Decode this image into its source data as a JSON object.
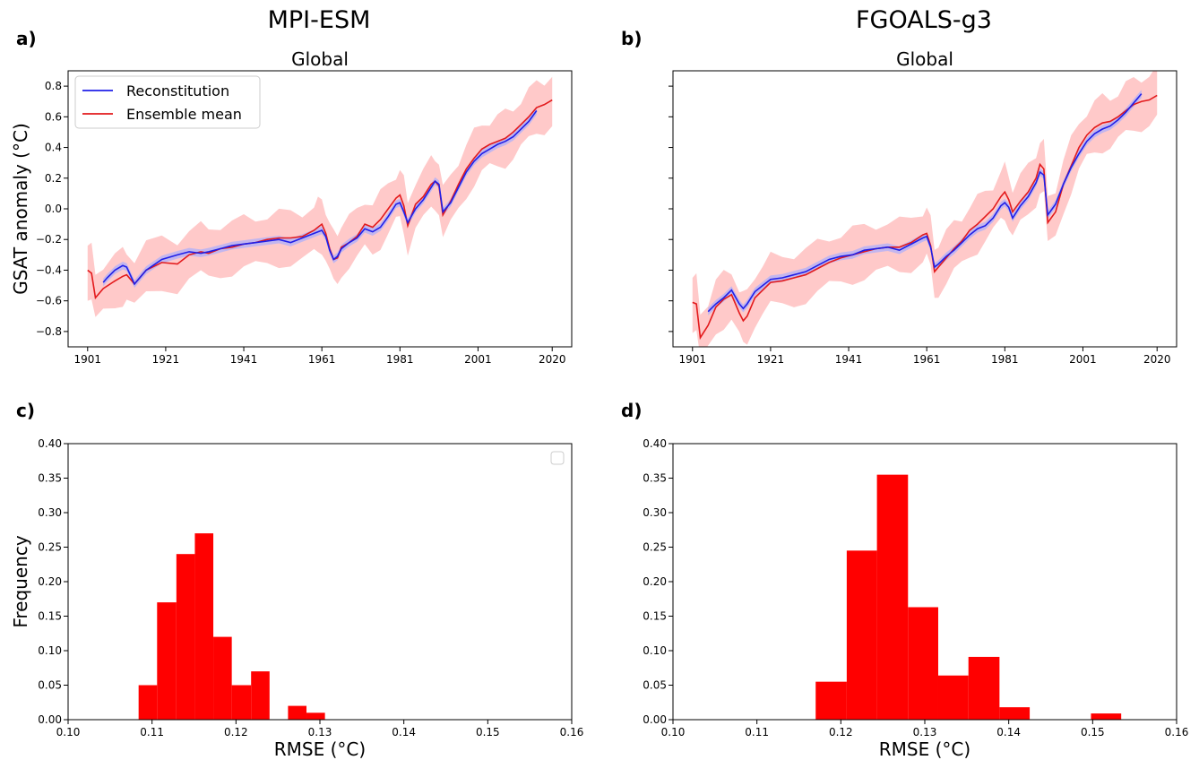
{
  "top_titles": [
    "MPI-ESM",
    "FGOALS-g3"
  ],
  "panel_labels": [
    "a)",
    "b)",
    "c)",
    "d)"
  ],
  "chart_data": [
    {
      "panel": "a)",
      "type": "line",
      "title": "Global",
      "xlabel": "",
      "ylabel": "GSAT anomaly (°C)",
      "xlim": [
        1896,
        2025
      ],
      "ylim": [
        -0.9,
        0.9
      ],
      "xticks": [
        1901,
        1921,
        1941,
        1961,
        1981,
        2001,
        2020
      ],
      "yticks": [
        -0.8,
        -0.6,
        -0.4,
        -0.2,
        0.0,
        0.2,
        0.4,
        0.6,
        0.8
      ],
      "ytick_labels": [
        "−0.8",
        "−0.6",
        "−0.4",
        "−0.2",
        "0.0",
        "0.2",
        "0.4",
        "0.6",
        "0.8"
      ],
      "legend": {
        "position": "top-left",
        "entries": [
          "Reconstitution",
          "Ensemble mean"
        ]
      },
      "colors": {
        "reconstitution": "#1f1fe8",
        "ensemble_mean": "#e31a1c",
        "spread": "#ffc9c9",
        "recon_band": "#b9b3f5"
      },
      "series": [
        {
          "name": "Ensemble mean",
          "x": [
            1901,
            1902,
            1903,
            1905,
            1908,
            1910,
            1911,
            1913,
            1916,
            1920,
            1924,
            1927,
            1930,
            1932,
            1935,
            1938,
            1941,
            1944,
            1947,
            1950,
            1953,
            1956,
            1959,
            1960,
            1961,
            1962,
            1963,
            1964,
            1965,
            1966,
            1968,
            1970,
            1972,
            1974,
            1976,
            1978,
            1980,
            1981,
            1982,
            1983,
            1985,
            1987,
            1989,
            1990,
            1991,
            1992,
            1994,
            1996,
            1998,
            2000,
            2002,
            2004,
            2006,
            2008,
            2010,
            2012,
            2014,
            2016,
            2018,
            2020
          ],
          "y": [
            -0.4,
            -0.42,
            -0.58,
            -0.52,
            -0.47,
            -0.44,
            -0.43,
            -0.49,
            -0.4,
            -0.35,
            -0.36,
            -0.3,
            -0.28,
            -0.29,
            -0.26,
            -0.25,
            -0.23,
            -0.22,
            -0.2,
            -0.19,
            -0.19,
            -0.18,
            -0.14,
            -0.12,
            -0.1,
            -0.16,
            -0.26,
            -0.33,
            -0.32,
            -0.25,
            -0.22,
            -0.18,
            -0.1,
            -0.12,
            -0.07,
            0.0,
            0.07,
            0.09,
            0.02,
            -0.11,
            0.03,
            0.08,
            0.16,
            0.18,
            0.15,
            -0.04,
            0.05,
            0.16,
            0.26,
            0.33,
            0.39,
            0.42,
            0.44,
            0.46,
            0.5,
            0.55,
            0.6,
            0.66,
            0.68,
            0.71
          ]
        },
        {
          "name": "Reconstitution",
          "x": [
            1905,
            1906,
            1908,
            1910,
            1911,
            1913,
            1916,
            1920,
            1924,
            1927,
            1930,
            1932,
            1935,
            1938,
            1941,
            1944,
            1947,
            1950,
            1953,
            1956,
            1959,
            1961,
            1962,
            1963,
            1964,
            1965,
            1966,
            1968,
            1970,
            1972,
            1974,
            1976,
            1978,
            1980,
            1981,
            1982,
            1983,
            1985,
            1987,
            1989,
            1990,
            1991,
            1992,
            1994,
            1996,
            1998,
            2000,
            2002,
            2004,
            2006,
            2008,
            2010,
            2012,
            2014,
            2016
          ],
          "y": [
            -0.48,
            -0.45,
            -0.4,
            -0.37,
            -0.38,
            -0.49,
            -0.4,
            -0.33,
            -0.3,
            -0.28,
            -0.29,
            -0.28,
            -0.26,
            -0.24,
            -0.23,
            -0.22,
            -0.21,
            -0.2,
            -0.22,
            -0.19,
            -0.16,
            -0.14,
            -0.18,
            -0.27,
            -0.33,
            -0.31,
            -0.26,
            -0.22,
            -0.19,
            -0.13,
            -0.15,
            -0.12,
            -0.05,
            0.03,
            0.04,
            -0.02,
            -0.09,
            0.0,
            0.06,
            0.14,
            0.18,
            0.16,
            -0.02,
            0.04,
            0.14,
            0.24,
            0.31,
            0.36,
            0.39,
            0.42,
            0.44,
            0.47,
            0.52,
            0.57,
            0.64
          ]
        }
      ]
    },
    {
      "panel": "b)",
      "type": "line",
      "title": "Global",
      "xlabel": "",
      "ylabel": "",
      "xlim": [
        1896,
        2025
      ],
      "ylim": [
        -0.9,
        0.9
      ],
      "xticks": [
        1901,
        1921,
        1941,
        1961,
        1981,
        2001,
        2020
      ],
      "yticks": [
        -0.8,
        -0.6,
        -0.4,
        -0.2,
        0.0,
        0.2,
        0.4,
        0.6,
        0.8
      ],
      "series": [
        {
          "name": "Ensemble mean",
          "x": [
            1901,
            1902,
            1903,
            1905,
            1907,
            1909,
            1911,
            1913,
            1914,
            1915,
            1917,
            1919,
            1921,
            1924,
            1927,
            1930,
            1933,
            1936,
            1939,
            1942,
            1945,
            1948,
            1951,
            1954,
            1957,
            1960,
            1961,
            1962,
            1963,
            1964,
            1966,
            1968,
            1970,
            1972,
            1974,
            1976,
            1978,
            1980,
            1981,
            1982,
            1983,
            1985,
            1987,
            1989,
            1990,
            1991,
            1992,
            1994,
            1996,
            1998,
            2000,
            2002,
            2004,
            2006,
            2008,
            2010,
            2012,
            2014,
            2016,
            2018,
            2020
          ],
          "y": [
            -0.61,
            -0.62,
            -0.84,
            -0.76,
            -0.64,
            -0.59,
            -0.56,
            -0.68,
            -0.73,
            -0.7,
            -0.58,
            -0.53,
            -0.48,
            -0.47,
            -0.45,
            -0.43,
            -0.39,
            -0.35,
            -0.32,
            -0.3,
            -0.28,
            -0.26,
            -0.25,
            -0.25,
            -0.22,
            -0.17,
            -0.16,
            -0.24,
            -0.41,
            -0.38,
            -0.32,
            -0.26,
            -0.21,
            -0.14,
            -0.1,
            -0.05,
            0.0,
            0.08,
            0.11,
            0.06,
            -0.02,
            0.05,
            0.11,
            0.2,
            0.29,
            0.26,
            -0.09,
            -0.02,
            0.16,
            0.28,
            0.4,
            0.48,
            0.53,
            0.56,
            0.57,
            0.6,
            0.64,
            0.68,
            0.7,
            0.71,
            0.74
          ]
        },
        {
          "name": "Reconstitution",
          "x": [
            1905,
            1907,
            1909,
            1911,
            1913,
            1914,
            1915,
            1917,
            1919,
            1921,
            1924,
            1927,
            1930,
            1933,
            1936,
            1939,
            1942,
            1945,
            1948,
            1951,
            1954,
            1957,
            1960,
            1961,
            1962,
            1963,
            1964,
            1966,
            1968,
            1970,
            1972,
            1974,
            1976,
            1978,
            1980,
            1981,
            1982,
            1983,
            1985,
            1987,
            1989,
            1990,
            1991,
            1992,
            1994,
            1996,
            1998,
            2000,
            2002,
            2004,
            2006,
            2008,
            2010,
            2012,
            2014,
            2016
          ],
          "y": [
            -0.67,
            -0.62,
            -0.58,
            -0.53,
            -0.62,
            -0.65,
            -0.62,
            -0.54,
            -0.5,
            -0.46,
            -0.45,
            -0.43,
            -0.41,
            -0.37,
            -0.33,
            -0.31,
            -0.3,
            -0.27,
            -0.26,
            -0.25,
            -0.27,
            -0.23,
            -0.19,
            -0.18,
            -0.25,
            -0.38,
            -0.36,
            -0.31,
            -0.27,
            -0.22,
            -0.17,
            -0.13,
            -0.11,
            -0.06,
            0.02,
            0.04,
            0.01,
            -0.06,
            0.02,
            0.08,
            0.17,
            0.24,
            0.22,
            -0.04,
            0.03,
            0.16,
            0.27,
            0.36,
            0.44,
            0.49,
            0.52,
            0.54,
            0.58,
            0.63,
            0.69,
            0.75
          ]
        }
      ]
    },
    {
      "panel": "c)",
      "type": "bar",
      "xlabel": "RMSE (°C)",
      "ylabel": "Frequency",
      "xlim": [
        0.1,
        0.16
      ],
      "ylim": [
        0.0,
        0.4
      ],
      "xticks": [
        0.1,
        0.11,
        0.12,
        0.13,
        0.14,
        0.15,
        0.16
      ],
      "yticks": [
        0.0,
        0.05,
        0.1,
        0.15,
        0.2,
        0.25,
        0.3,
        0.35,
        0.4
      ],
      "xtick_labels": [
        "0.10",
        "0.11",
        "0.12",
        "0.13",
        "0.14",
        "0.15",
        "0.16"
      ],
      "ytick_labels": [
        "0.00",
        "0.05",
        "0.10",
        "0.15",
        "0.20",
        "0.25",
        "0.30",
        "0.35",
        "0.40"
      ],
      "legend": {
        "position": "top-right",
        "entries": []
      },
      "bins": [
        {
          "start": 0.1084,
          "end": 0.1106,
          "value": 0.05
        },
        {
          "start": 0.1106,
          "end": 0.1129,
          "value": 0.17
        },
        {
          "start": 0.1129,
          "end": 0.1151,
          "value": 0.24
        },
        {
          "start": 0.1151,
          "end": 0.1173,
          "value": 0.27
        },
        {
          "start": 0.1173,
          "end": 0.1195,
          "value": 0.12
        },
        {
          "start": 0.1195,
          "end": 0.1218,
          "value": 0.05
        },
        {
          "start": 0.1218,
          "end": 0.124,
          "value": 0.07
        },
        {
          "start": 0.1262,
          "end": 0.1284,
          "value": 0.02
        },
        {
          "start": 0.1284,
          "end": 0.1306,
          "value": 0.01
        }
      ]
    },
    {
      "panel": "d)",
      "type": "bar",
      "xlabel": "RMSE (°C)",
      "ylabel": "",
      "xlim": [
        0.1,
        0.16
      ],
      "ylim": [
        0.0,
        0.4
      ],
      "xticks": [
        0.1,
        0.11,
        0.12,
        0.13,
        0.14,
        0.15,
        0.16
      ],
      "yticks": [
        0.0,
        0.05,
        0.1,
        0.15,
        0.2,
        0.25,
        0.3,
        0.35,
        0.4
      ],
      "xtick_labels": [
        "0.10",
        "0.11",
        "0.12",
        "0.13",
        "0.14",
        "0.15",
        "0.16"
      ],
      "ytick_labels": [
        "0.00",
        "0.05",
        "0.10",
        "0.15",
        "0.20",
        "0.25",
        "0.30",
        "0.35",
        "0.40"
      ],
      "bins": [
        {
          "start": 0.117,
          "end": 0.1207,
          "value": 0.055
        },
        {
          "start": 0.1207,
          "end": 0.1243,
          "value": 0.245
        },
        {
          "start": 0.1243,
          "end": 0.128,
          "value": 0.355
        },
        {
          "start": 0.128,
          "end": 0.1316,
          "value": 0.163
        },
        {
          "start": 0.1316,
          "end": 0.1352,
          "value": 0.064
        },
        {
          "start": 0.1352,
          "end": 0.1389,
          "value": 0.091
        },
        {
          "start": 0.1389,
          "end": 0.1425,
          "value": 0.018
        },
        {
          "start": 0.1498,
          "end": 0.1534,
          "value": 0.009
        }
      ]
    }
  ]
}
